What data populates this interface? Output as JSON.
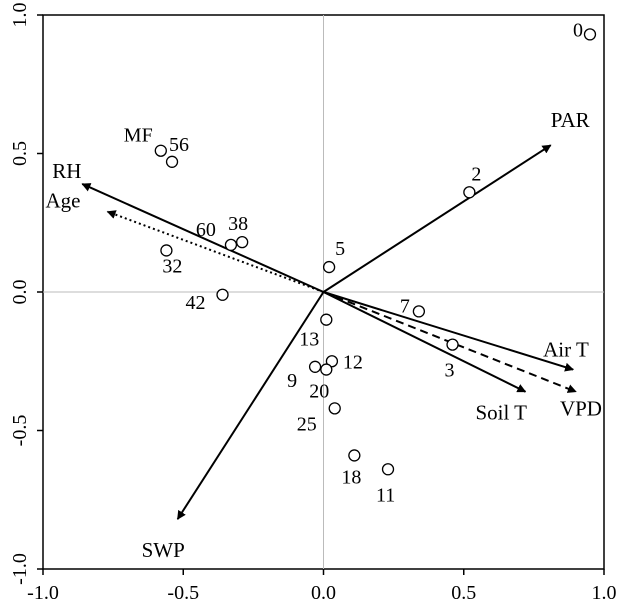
{
  "chart_data": {
    "type": "scatter",
    "title": "",
    "xlabel": "",
    "ylabel": "",
    "xlim": [
      -1.0,
      1.0
    ],
    "ylim": [
      -1.0,
      1.0
    ],
    "xticks": [
      "-1.0",
      "-0.5",
      "0.0",
      "0.5",
      "1.0"
    ],
    "yticks": [
      "-1.0",
      "-0.5",
      "0.0",
      "0.5",
      "1.0"
    ],
    "points": [
      {
        "label": "0",
        "x": 0.95,
        "y": 0.93
      },
      {
        "label": "2",
        "x": 0.52,
        "y": 0.36
      },
      {
        "label": "MF",
        "x": -0.58,
        "y": 0.51
      },
      {
        "label": "56",
        "x": -0.54,
        "y": 0.47
      },
      {
        "label": "60",
        "x": -0.33,
        "y": 0.17
      },
      {
        "label": "38",
        "x": -0.29,
        "y": 0.18
      },
      {
        "label": "32",
        "x": -0.56,
        "y": 0.15
      },
      {
        "label": "5",
        "x": 0.02,
        "y": 0.09
      },
      {
        "label": "42",
        "x": -0.36,
        "y": -0.01
      },
      {
        "label": "7",
        "x": 0.34,
        "y": -0.07
      },
      {
        "label": "3",
        "x": 0.46,
        "y": -0.19
      },
      {
        "label": "13",
        "x": 0.01,
        "y": -0.1
      },
      {
        "label": "12",
        "x": 0.03,
        "y": -0.25
      },
      {
        "label": "9",
        "x": -0.03,
        "y": -0.27
      },
      {
        "label": "20",
        "x": 0.01,
        "y": -0.28
      },
      {
        "label": "25",
        "x": 0.04,
        "y": -0.42
      },
      {
        "label": "18",
        "x": 0.11,
        "y": -0.59
      },
      {
        "label": "11",
        "x": 0.23,
        "y": -0.64
      }
    ],
    "vectors": [
      {
        "label": "PAR",
        "x": 0.81,
        "y": 0.53,
        "style": "solid"
      },
      {
        "label": "RH",
        "x": -0.86,
        "y": 0.39,
        "style": "solid"
      },
      {
        "label": "Age",
        "x": -0.77,
        "y": 0.29,
        "style": "dotted"
      },
      {
        "label": "Air T",
        "x": 0.89,
        "y": -0.28,
        "style": "solid"
      },
      {
        "label": "VPD",
        "x": 0.9,
        "y": -0.36,
        "style": "dashed"
      },
      {
        "label": "Soil T",
        "x": 0.72,
        "y": -0.36,
        "style": "solid"
      },
      {
        "label": "SWP",
        "x": -0.52,
        "y": -0.82,
        "style": "solid"
      }
    ]
  }
}
